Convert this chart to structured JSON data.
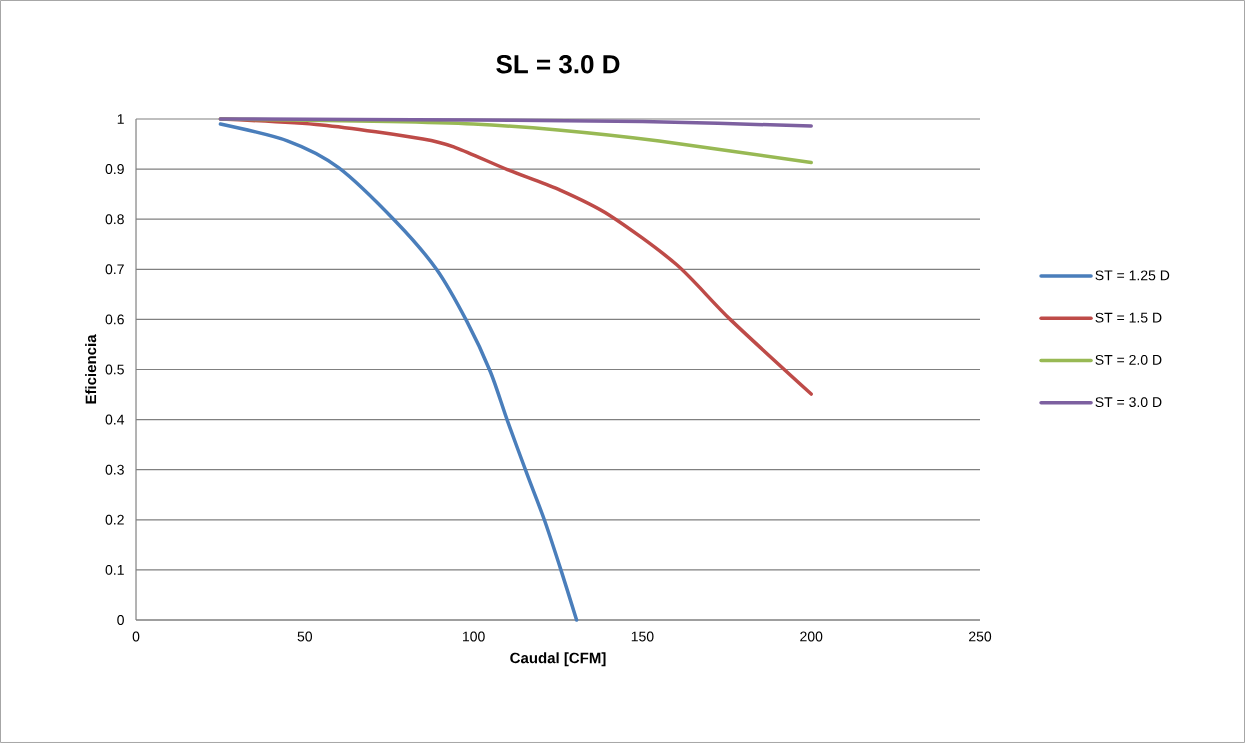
{
  "chart_data": {
    "type": "line",
    "title": "SL = 3.0 D",
    "xlabel": "Caudal [CFM]",
    "ylabel": "Eficiencia",
    "xlim": [
      0,
      250
    ],
    "xticks": [
      0,
      50,
      100,
      150,
      200,
      250
    ],
    "ylim": [
      0,
      1
    ],
    "yticks": [
      0,
      0.1,
      0.2,
      0.3,
      0.4,
      0.5,
      0.6,
      0.7,
      0.8,
      0.9,
      1
    ],
    "grid": "y",
    "legend": "right",
    "series": [
      {
        "name": "ST = 1.25 D",
        "color": "#4a7ebb",
        "x": [
          25,
          45,
          60,
          77,
          89,
          98,
          105,
          110,
          116,
          121,
          126,
          130.5
        ],
        "values": [
          0.99,
          0.956,
          0.903,
          0.795,
          0.7,
          0.596,
          0.495,
          0.398,
          0.288,
          0.199,
          0.097,
          0
        ]
      },
      {
        "name": "ST = 1.5 D",
        "color": "#be4b48",
        "x": [
          25,
          55,
          85,
          95,
          110,
          125,
          140,
          160,
          176,
          200
        ],
        "values": [
          1,
          0.988,
          0.96,
          0.942,
          0.899,
          0.86,
          0.809,
          0.71,
          0.6,
          0.451
        ]
      },
      {
        "name": "ST = 2.0 D",
        "color": "#98b954",
        "x": [
          25,
          75,
          100,
          125,
          155,
          200
        ],
        "values": [
          1,
          0.995,
          0.99,
          0.978,
          0.956,
          0.913
        ]
      },
      {
        "name": "ST = 3.0 D",
        "color": "#7d60a0",
        "x": [
          25,
          100,
          150,
          200
        ],
        "values": [
          1,
          0.998,
          0.995,
          0.986
        ]
      }
    ]
  }
}
